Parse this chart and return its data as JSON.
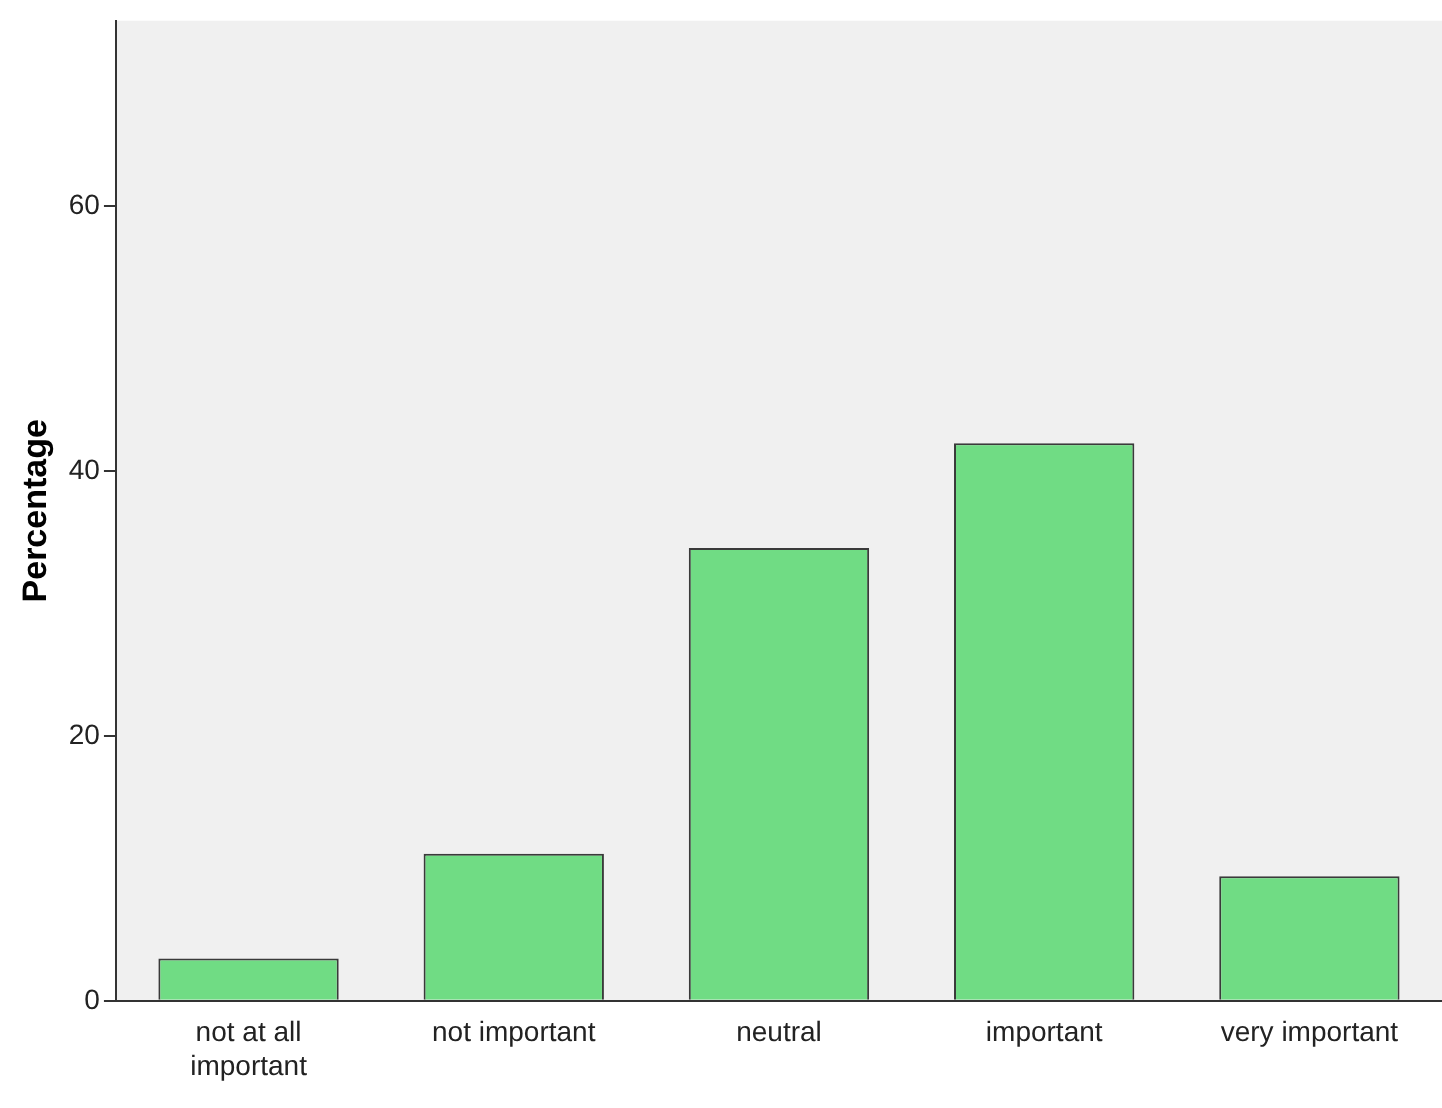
{
  "chart_data": {
    "type": "bar",
    "ylabel": "Percentage",
    "categories": [
      "not at all important",
      "not important",
      "neutral",
      "important",
      "very important"
    ],
    "values": [
      3.2,
      11.1,
      34.2,
      42.1,
      9.4
    ],
    "color": "#70dc84",
    "ylim": [
      0,
      74
    ],
    "yticks": [
      0,
      20,
      40,
      60
    ],
    "grid": false,
    "legend": false
  }
}
